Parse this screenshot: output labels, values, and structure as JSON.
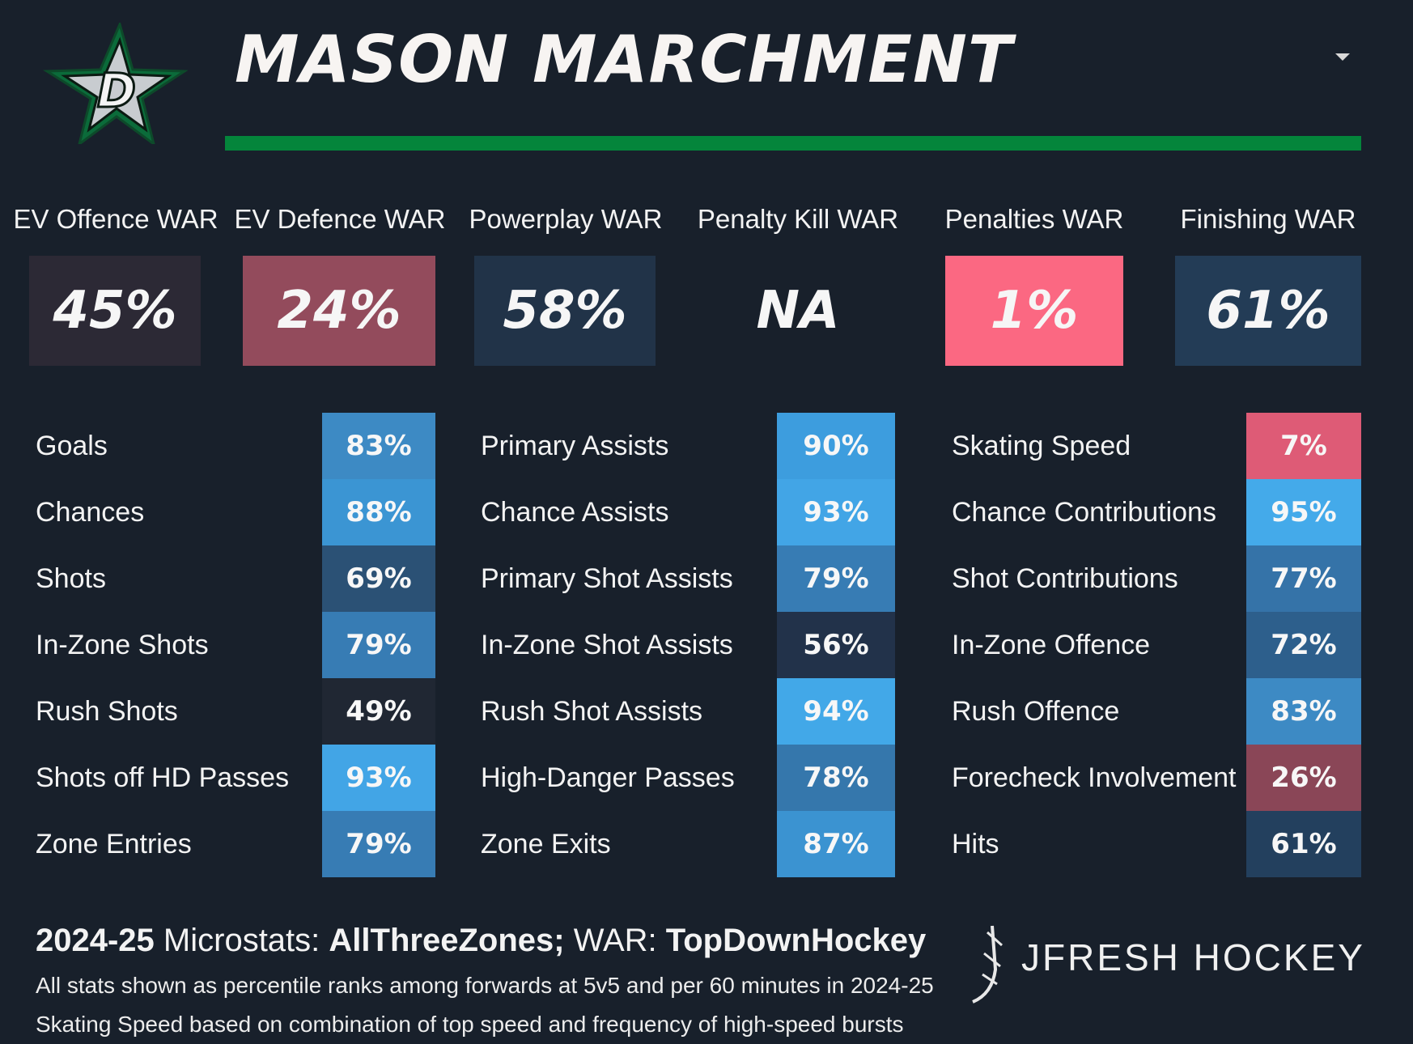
{
  "player": {
    "name": "MASON MARCHMENT",
    "team_logo_icon": "dallas-stars-logo",
    "logo_letter": "D",
    "accent_color": "#04853b"
  },
  "war": [
    {
      "label": "EV Offence WAR",
      "value": "45%",
      "color": "#2c2935"
    },
    {
      "label": "EV Defence WAR",
      "value": "24%",
      "color": "#934b5c"
    },
    {
      "label": "Powerplay WAR",
      "value": "58%",
      "color": "#213348"
    },
    {
      "label": "Penalty Kill WAR",
      "value": "NA",
      "color": "#18202b"
    },
    {
      "label": "Penalties WAR",
      "value": "1%",
      "color": "#fb6882"
    },
    {
      "label": "Finishing WAR",
      "value": "61%",
      "color": "#233c56"
    }
  ],
  "stats": [
    [
      {
        "label": "Goals",
        "value": "83%",
        "color": "#3d8ac4"
      },
      {
        "label": "Chances",
        "value": "88%",
        "color": "#3b95d3"
      },
      {
        "label": "Shots",
        "value": "69%",
        "color": "#2b5175"
      },
      {
        "label": "In-Zone Shots",
        "value": "79%",
        "color": "#377cb4"
      },
      {
        "label": "Rush Shots",
        "value": "49%",
        "color": "#202733"
      },
      {
        "label": "Shots off HD Passes",
        "value": "93%",
        "color": "#42a5e6"
      },
      {
        "label": "Zone Entries",
        "value": "79%",
        "color": "#377cb4"
      }
    ],
    [
      {
        "label": "Primary Assists",
        "value": "90%",
        "color": "#3d9dde"
      },
      {
        "label": "Chance Assists",
        "value": "93%",
        "color": "#42a5e6"
      },
      {
        "label": "Primary Shot Assists",
        "value": "79%",
        "color": "#377cb4"
      },
      {
        "label": "In-Zone Shot Assists",
        "value": "56%",
        "color": "#22324a"
      },
      {
        "label": "Rush Shot Assists",
        "value": "94%",
        "color": "#42a8e8"
      },
      {
        "label": "High-Danger Passes",
        "value": "78%",
        "color": "#3577ac"
      },
      {
        "label": "Zone Exits",
        "value": "87%",
        "color": "#3b93d1"
      }
    ],
    [
      {
        "label": "Skating Speed",
        "value": "7%",
        "color": "#de5b76"
      },
      {
        "label": "Chance Contributions",
        "value": "95%",
        "color": "#44aaea"
      },
      {
        "label": "Shot Contributions",
        "value": "77%",
        "color": "#3573a8"
      },
      {
        "label": "In-Zone Offence",
        "value": "72%",
        "color": "#2d5f8c"
      },
      {
        "label": "Rush Offence",
        "value": "83%",
        "color": "#3d8ac4"
      },
      {
        "label": "Forecheck Involvement",
        "value": "26%",
        "color": "#8a4657"
      },
      {
        "label": "Hits",
        "value": "61%",
        "color": "#23405e"
      }
    ]
  ],
  "footer": {
    "season": "2024-25",
    "microstats_label": "Microstats:",
    "microstats_source": "AllThreeZones;",
    "war_label": "WAR:",
    "war_source": "TopDownHockey",
    "note1": "All stats shown as percentile ranks among forwards at 5v5 and per 60 minutes in 2024-25",
    "note2": "Skating Speed based on combination of top speed and frequency of high-speed bursts"
  },
  "brand": {
    "name": "JFRESH HOCKEY",
    "icon": "hockey-stick-icon"
  }
}
